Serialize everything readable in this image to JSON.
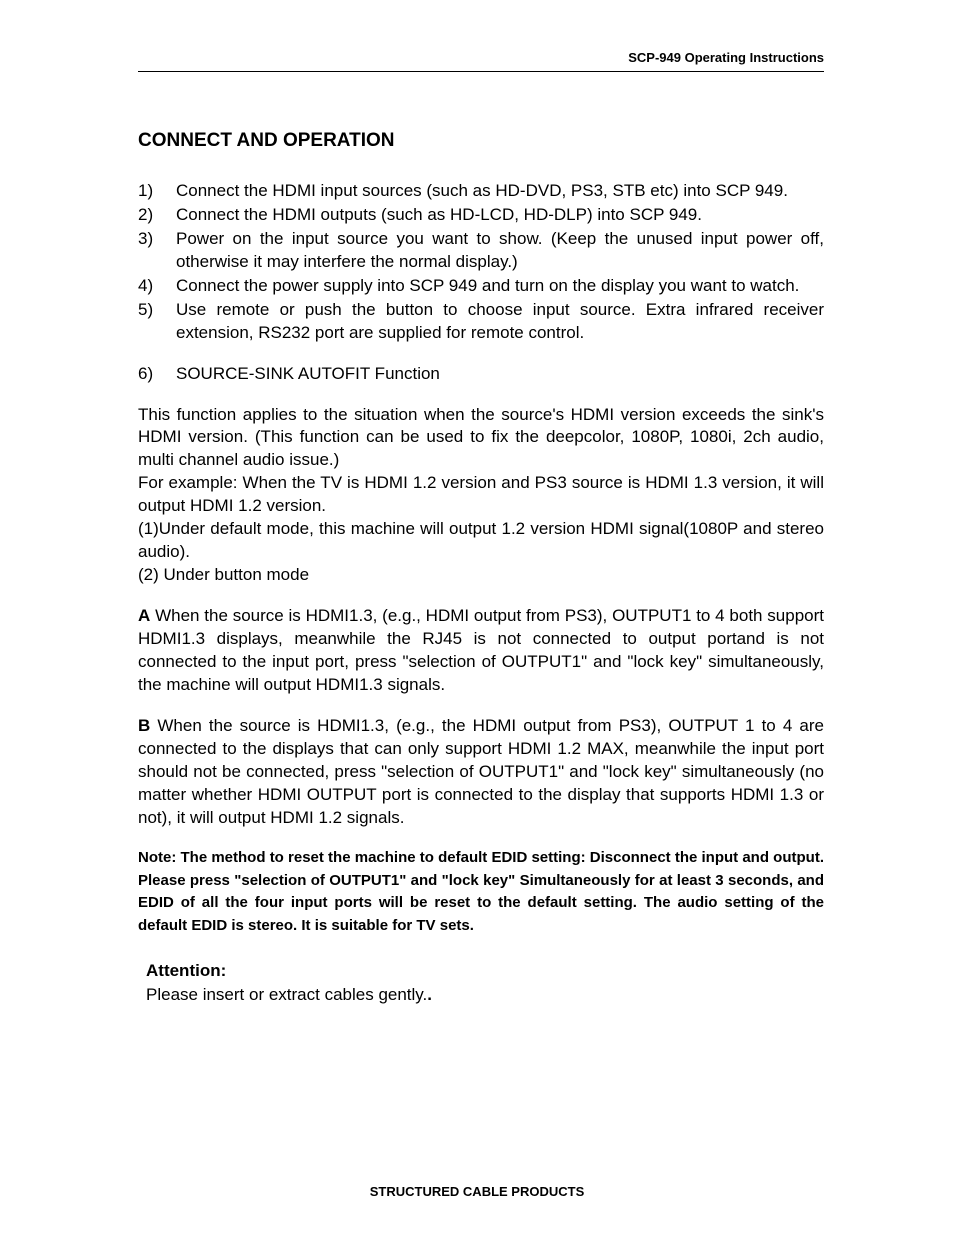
{
  "header": {
    "title": "SCP-949  Operating Instructions"
  },
  "section": {
    "title": "CONNECT AND OPERATION"
  },
  "steps": [
    {
      "num": "1)",
      "text": "Connect the HDMI input sources (such as HD-DVD, PS3, STB etc) into SCP 949."
    },
    {
      "num": "2)",
      "text": "Connect the HDMI outputs (such as HD-LCD, HD-DLP) into SCP 949."
    },
    {
      "num": "3)",
      "text": "Power on the input source you want to show. (Keep the unused input power off, otherwise it may interfere the normal display.)"
    },
    {
      "num": "4)",
      "text": "Connect the power supply into SCP 949 and turn on the display you want to watch."
    },
    {
      "num": "5)",
      "text": "Use remote or push the button to choose input source. Extra infrared receiver extension, RS232 port are supplied for remote control."
    },
    {
      "num": "6)",
      "text": " SOURCE-SINK AUTOFIT Function"
    }
  ],
  "body": {
    "intro1": "This function applies to the situation when the source's HDMI version exceeds the sink's HDMI version. (This function can be used to fix the deepcolor, 1080P, 1080i, 2ch audio, multi channel audio issue.)",
    "intro2": "For example: When the TV is HDMI 1.2 version and PS3 source is HDMI 1.3 version, it will output HDMI 1.2 version.",
    "mode1": "(1)Under default mode, this machine will output 1.2 version HDMI signal(1080P and stereo audio).",
    "mode2": "(2) Under button mode",
    "letterA_label": "A",
    "letterA_text": "   When the source is HDMI1.3, (e.g., HDMI output from PS3), OUTPUT1 to 4 both support HDMI1.3 displays, meanwhile the RJ45 is not connected to output portand  is not connected to the input port, press \"selection of OUTPUT1\" and \"lock key\" simultaneously, the machine will output HDMI1.3 signals.",
    "letterB_label": "B",
    "letterB_text": "    When the source is HDMI1.3, (e.g., the HDMI output from PS3), OUTPUT 1 to 4 are connected to the displays that can only support HDMI 1.2 MAX, meanwhile the input port should not be connected, press \"selection of OUTPUT1\" and \"lock key\" simultaneously  (no matter whether HDMI OUTPUT port is connected to the display that supports HDMI 1.3 or not), it will output HDMI 1.2 signals."
  },
  "note": {
    "text": "Note: The method to reset the machine to default EDID setting: Disconnect the input and output. Please press \"selection of OUTPUT1\" and \"lock key\" Simultaneously for at least 3 seconds, and EDID of all the four input ports will be reset to the default setting. The audio setting of the default EDID is stereo. It is suitable for TV sets."
  },
  "attention": {
    "label": "Attention:",
    "text": "Please insert or extract cables gently."
  },
  "footer": {
    "text": "STRUCTURED CABLE PRODUCTS"
  }
}
